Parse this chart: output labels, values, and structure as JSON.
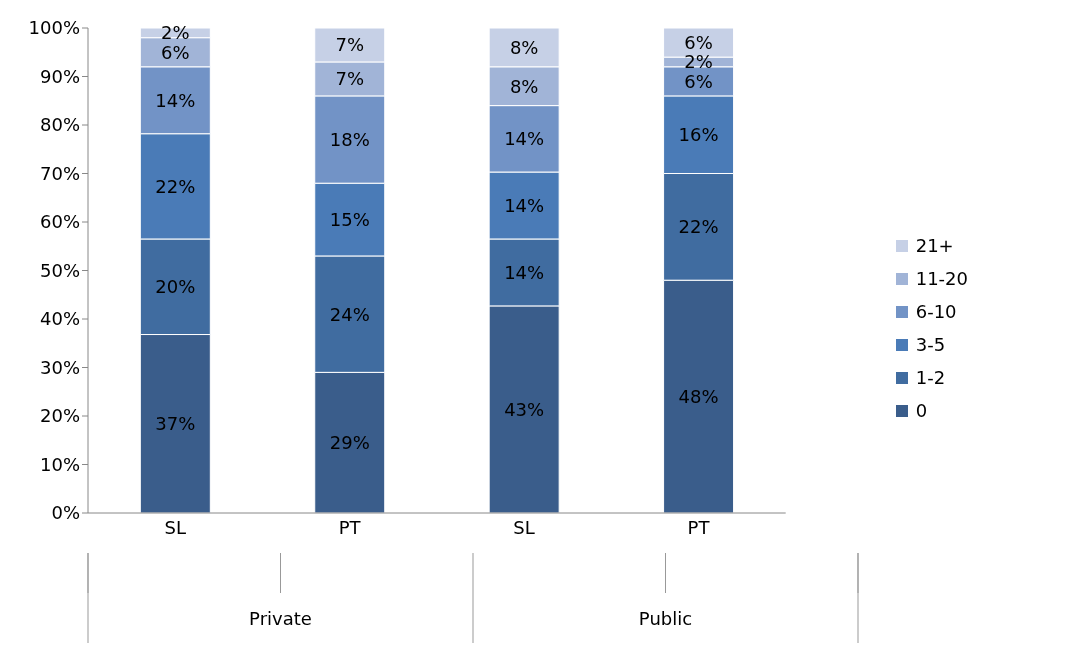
{
  "chart_data": {
    "type": "bar",
    "stacked": true,
    "categories": [
      "SL",
      "PT",
      "SL",
      "PT"
    ],
    "annotations": [
      "Private",
      "Public"
    ],
    "series": [
      {
        "name": "0",
        "color": "#3a5d8b",
        "values": [
          36.8,
          29,
          42.7,
          48
        ],
        "value_labels": [
          "37%",
          "29%",
          "43%",
          "48%"
        ]
      },
      {
        "name": "1-2",
        "color": "#406ca0",
        "values": [
          19.7,
          24,
          13.8,
          22
        ],
        "value_labels": [
          "20%",
          "24%",
          "14%",
          "22%"
        ]
      },
      {
        "name": "3-5",
        "color": "#4a7bb7",
        "values": [
          21.7,
          15,
          13.8,
          16
        ],
        "value_labels": [
          "22%",
          "15%",
          "14%",
          "16%"
        ]
      },
      {
        "name": "6-10",
        "color": "#7293c6",
        "values": [
          13.8,
          18,
          13.7,
          6
        ],
        "value_labels": [
          "14%",
          "18%",
          "14%",
          "6%"
        ]
      },
      {
        "name": "11-20",
        "color": "#a1b4d7",
        "values": [
          6,
          7,
          8,
          2
        ],
        "value_labels": [
          "6%",
          "7%",
          "8%",
          "2%"
        ]
      },
      {
        "name": "21+",
        "color": "#c6d0e6",
        "values": [
          2,
          7,
          8,
          6
        ],
        "value_labels": [
          "2%",
          "7%",
          "8%",
          "6%"
        ]
      }
    ],
    "ylim": [
      0,
      100
    ],
    "yticks": [
      {
        "value": 0,
        "label": "0%"
      },
      {
        "value": 10,
        "label": "10%"
      },
      {
        "value": 20,
        "label": "20%"
      },
      {
        "value": 30,
        "label": "30%"
      },
      {
        "value": 40,
        "label": "40%"
      },
      {
        "value": 50,
        "label": "50%"
      },
      {
        "value": 60,
        "label": "60%"
      },
      {
        "value": 70,
        "label": "70%"
      },
      {
        "value": 80,
        "label": "80%"
      },
      {
        "value": 90,
        "label": "90%"
      },
      {
        "value": 100,
        "label": "100%"
      }
    ],
    "grid": false,
    "legend": "right"
  }
}
